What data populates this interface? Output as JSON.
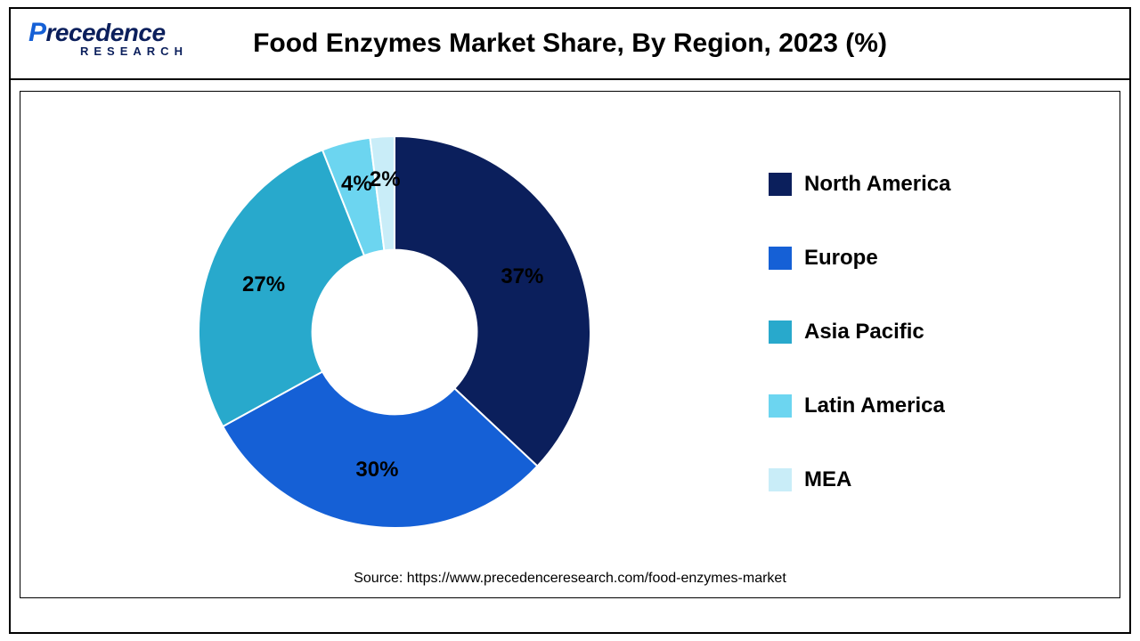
{
  "logo": {
    "brand_first_letter": "P",
    "brand_rest": "recedence",
    "brand_sub": "RESEARCH"
  },
  "title": "Food Enzymes Market Share, By Region, 2023 (%)",
  "chart": {
    "type": "donut",
    "background_color": "#ffffff",
    "inner_radius_ratio": 0.42,
    "start_angle_deg": 0,
    "direction": "clockwise",
    "slices": [
      {
        "label": "North America",
        "value": 37,
        "color": "#0b1f5c",
        "text": "37%"
      },
      {
        "label": "Europe",
        "value": 30,
        "color": "#1560d6",
        "text": "30%"
      },
      {
        "label": "Asia Pacific",
        "value": 27,
        "color": "#28a9cc",
        "text": "27%"
      },
      {
        "label": "Latin America",
        "value": 4,
        "color": "#6cd5f0",
        "text": "4%"
      },
      {
        "label": "MEA",
        "value": 2,
        "color": "#c9edf8",
        "text": "2%"
      }
    ],
    "label_fontsize": 24,
    "label_fontweight": "bold",
    "label_color": "#000000"
  },
  "legend": {
    "fontsize": 24,
    "fontweight": "bold",
    "swatch_size": 26,
    "items": [
      {
        "label": "North America",
        "color": "#0b1f5c"
      },
      {
        "label": "Europe",
        "color": "#1560d6"
      },
      {
        "label": "Asia Pacific",
        "color": "#28a9cc"
      },
      {
        "label": "Latin America",
        "color": "#6cd5f0"
      },
      {
        "label": "MEA",
        "color": "#c9edf8"
      }
    ]
  },
  "source": "Source: https://www.precedenceresearch.com/food-enzymes-market"
}
